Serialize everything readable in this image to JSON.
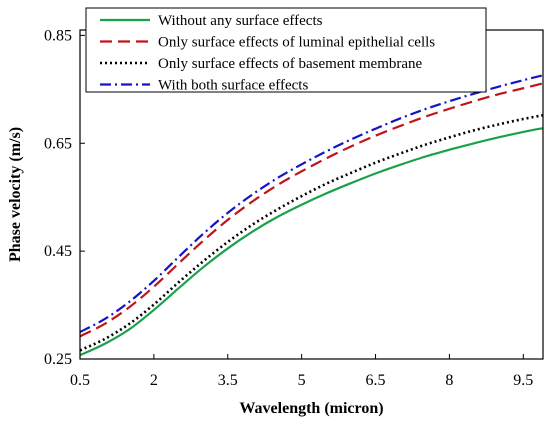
{
  "chart_data": {
    "type": "line",
    "title": "",
    "xlabel": "Wavelength (micron)",
    "ylabel": "Phase velocity (m/s)",
    "xlim": [
      0.5,
      9.9
    ],
    "ylim": [
      0.25,
      0.86
    ],
    "xticks": [
      0.5,
      2,
      3.5,
      5,
      6.5,
      8,
      9.5
    ],
    "xtick_labels": [
      "0.5",
      "2",
      "3.5",
      "5",
      "6.5",
      "8",
      "9.5"
    ],
    "yticks": [
      0.25,
      0.45,
      0.65,
      0.85
    ],
    "ytick_labels": [
      "0.25",
      "0.45",
      "0.65",
      "0.85"
    ],
    "grid": false,
    "legend_position": "top-left",
    "x": [
      0.5,
      1,
      1.5,
      2,
      2.5,
      3,
      3.5,
      4,
      4.5,
      5,
      5.5,
      6,
      6.5,
      7,
      7.5,
      8,
      8.5,
      9,
      9.5,
      9.9
    ],
    "series": [
      {
        "name": "Without any surface effects",
        "color": "#1aa14a",
        "dash": "solid",
        "values": [
          0.257,
          0.278,
          0.305,
          0.341,
          0.381,
          0.42,
          0.455,
          0.486,
          0.513,
          0.536,
          0.557,
          0.576,
          0.594,
          0.61,
          0.625,
          0.638,
          0.65,
          0.661,
          0.671,
          0.678
        ]
      },
      {
        "name": "Only surface effects of luminal epithelial cells",
        "color": "#c0141c",
        "dash": "dashed",
        "values": [
          0.292,
          0.315,
          0.346,
          0.384,
          0.427,
          0.469,
          0.508,
          0.542,
          0.572,
          0.598,
          0.622,
          0.644,
          0.664,
          0.682,
          0.699,
          0.714,
          0.728,
          0.741,
          0.752,
          0.761
        ]
      },
      {
        "name": "Only surface effects of basement membrane",
        "color": "#000000",
        "dash": "dotted",
        "values": [
          0.266,
          0.287,
          0.315,
          0.351,
          0.392,
          0.431,
          0.467,
          0.499,
          0.527,
          0.552,
          0.575,
          0.595,
          0.614,
          0.631,
          0.647,
          0.661,
          0.674,
          0.685,
          0.695,
          0.702
        ]
      },
      {
        "name": "With both surface effects",
        "color": "#1414c8",
        "dash": "dashdot",
        "values": [
          0.3,
          0.324,
          0.356,
          0.395,
          0.439,
          0.482,
          0.521,
          0.555,
          0.585,
          0.611,
          0.635,
          0.657,
          0.677,
          0.696,
          0.713,
          0.728,
          0.742,
          0.755,
          0.767,
          0.776
        ]
      }
    ]
  }
}
